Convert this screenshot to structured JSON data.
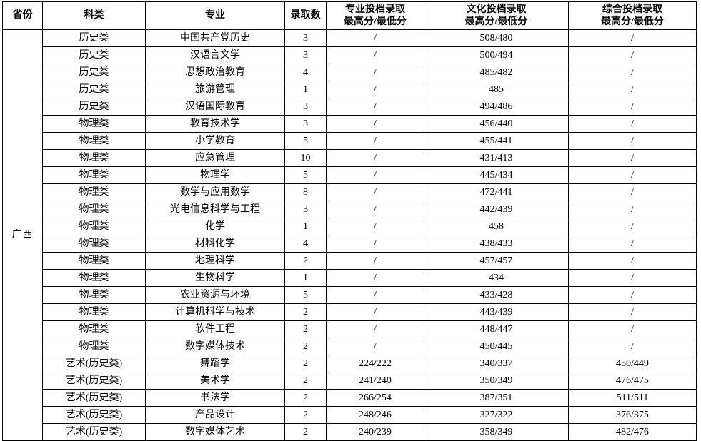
{
  "table": {
    "province": "广西",
    "columns": [
      {
        "key": "province",
        "label": "省份",
        "sublabel": ""
      },
      {
        "key": "category",
        "label": "科类",
        "sublabel": ""
      },
      {
        "key": "major",
        "label": "专业",
        "sublabel": ""
      },
      {
        "key": "count",
        "label": "录取数",
        "sublabel": ""
      },
      {
        "key": "major_score",
        "label": "专业投档录取",
        "sublabel": "最高分/最低分"
      },
      {
        "key": "culture_score",
        "label": "文化投档录取",
        "sublabel": "最高分/最低分"
      },
      {
        "key": "comprehensive_score",
        "label": "综合投档录取",
        "sublabel": "最高分/最低分"
      }
    ],
    "rows": [
      {
        "category": "历史类",
        "major": "中国共产党历史",
        "count": "3",
        "major_score": "/",
        "culture_score": "508/480",
        "comprehensive_score": "/"
      },
      {
        "category": "历史类",
        "major": "汉语言文学",
        "count": "3",
        "major_score": "/",
        "culture_score": "500/494",
        "comprehensive_score": "/"
      },
      {
        "category": "历史类",
        "major": "思想政治教育",
        "count": "4",
        "major_score": "/",
        "culture_score": "485/482",
        "comprehensive_score": "/"
      },
      {
        "category": "历史类",
        "major": "旅游管理",
        "count": "1",
        "major_score": "/",
        "culture_score": "485",
        "comprehensive_score": "/"
      },
      {
        "category": "历史类",
        "major": "汉语国际教育",
        "count": "3",
        "major_score": "/",
        "culture_score": "494/486",
        "comprehensive_score": "/"
      },
      {
        "category": "物理类",
        "major": "教育技术学",
        "count": "3",
        "major_score": "/",
        "culture_score": "456/440",
        "comprehensive_score": "/"
      },
      {
        "category": "物理类",
        "major": "小学教育",
        "count": "5",
        "major_score": "/",
        "culture_score": "455/441",
        "comprehensive_score": "/"
      },
      {
        "category": "物理类",
        "major": "应急管理",
        "count": "10",
        "major_score": "/",
        "culture_score": "431/413",
        "comprehensive_score": "/"
      },
      {
        "category": "物理类",
        "major": "物理学",
        "count": "5",
        "major_score": "/",
        "culture_score": "445/434",
        "comprehensive_score": "/"
      },
      {
        "category": "物理类",
        "major": "数学与应用数学",
        "count": "8",
        "major_score": "/",
        "culture_score": "472/441",
        "comprehensive_score": "/"
      },
      {
        "category": "物理类",
        "major": "光电信息科学与工程",
        "count": "3",
        "major_score": "/",
        "culture_score": "442/439",
        "comprehensive_score": "/"
      },
      {
        "category": "物理类",
        "major": "化学",
        "count": "1",
        "major_score": "/",
        "culture_score": "458",
        "comprehensive_score": "/"
      },
      {
        "category": "物理类",
        "major": "材料化学",
        "count": "4",
        "major_score": "/",
        "culture_score": "438/433",
        "comprehensive_score": "/"
      },
      {
        "category": "物理类",
        "major": "地理科学",
        "count": "2",
        "major_score": "/",
        "culture_score": "457/457",
        "comprehensive_score": "/"
      },
      {
        "category": "物理类",
        "major": "生物科学",
        "count": "1",
        "major_score": "/",
        "culture_score": "434",
        "comprehensive_score": "/"
      },
      {
        "category": "物理类",
        "major": "农业资源与环境",
        "count": "5",
        "major_score": "/",
        "culture_score": "433/428",
        "comprehensive_score": "/"
      },
      {
        "category": "物理类",
        "major": "计算机科学与技术",
        "count": "2",
        "major_score": "/",
        "culture_score": "443/439",
        "comprehensive_score": "/"
      },
      {
        "category": "物理类",
        "major": "软件工程",
        "count": "2",
        "major_score": "/",
        "culture_score": "448/447",
        "comprehensive_score": "/"
      },
      {
        "category": "物理类",
        "major": "数字媒体技术",
        "count": "2",
        "major_score": "/",
        "culture_score": "450/445",
        "comprehensive_score": "/"
      },
      {
        "category": "艺术(历史类)",
        "major": "舞蹈学",
        "count": "2",
        "major_score": "224/222",
        "culture_score": "340/337",
        "comprehensive_score": "450/449"
      },
      {
        "category": "艺术(历史类)",
        "major": "美术学",
        "count": "2",
        "major_score": "241/240",
        "culture_score": "350/349",
        "comprehensive_score": "476/475"
      },
      {
        "category": "艺术(历史类)",
        "major": "书法学",
        "count": "2",
        "major_score": "266/254",
        "culture_score": "387/351",
        "comprehensive_score": "511/511"
      },
      {
        "category": "艺术(历史类)",
        "major": "产品设计",
        "count": "2",
        "major_score": "248/246",
        "culture_score": "327/322",
        "comprehensive_score": "376/375"
      },
      {
        "category": "艺术(历史类)",
        "major": "数字媒体艺术",
        "count": "2",
        "major_score": "240/239",
        "culture_score": "358/349",
        "comprehensive_score": "482/476"
      }
    ]
  }
}
